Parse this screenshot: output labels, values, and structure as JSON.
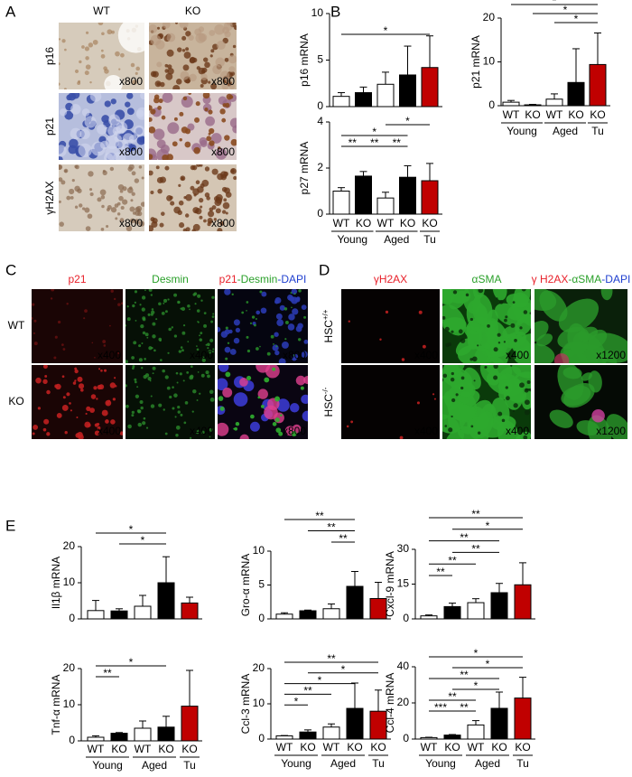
{
  "panel_letters": [
    "A",
    "B",
    "C",
    "D",
    "E"
  ],
  "panel_a": {
    "columns": [
      "WT",
      "KO"
    ],
    "rows": [
      "p16",
      "p21",
      "γH2AX"
    ],
    "magnifications": [
      [
        "x800",
        "x800"
      ],
      [
        "x800",
        "x800"
      ],
      [
        "x800",
        "x800"
      ]
    ]
  },
  "panel_c": {
    "columns": [
      [
        {
          "text": "p21",
          "color": "#e8202a"
        }
      ],
      [
        {
          "text": "Desmin",
          "color": "#2aa02a"
        }
      ],
      [
        {
          "text": "p21",
          "color": "#e8202a"
        },
        {
          "text": "-Desmin",
          "color": "#2aa02a"
        },
        {
          "text": "-DAPI",
          "color": "#2040d0"
        }
      ]
    ],
    "rows": [
      [
        {
          "text": "WT"
        }
      ],
      [
        {
          "text": "KO"
        }
      ]
    ],
    "magnifications": [
      [
        "x400",
        "x400",
        "x800"
      ],
      [
        "x400",
        "x400",
        "x800"
      ]
    ]
  },
  "panel_d": {
    "columns": [
      [
        {
          "text": "γH2AX",
          "color": "#e8202a"
        }
      ],
      [
        {
          "text": "αSMA",
          "color": "#2aa02a"
        }
      ],
      [
        {
          "text": "γ H2AX",
          "color": "#e8202a"
        },
        {
          "text": "-αSMA",
          "color": "#2aa02a"
        },
        {
          "text": "-DAPI",
          "color": "#2040d0"
        }
      ]
    ],
    "rows": [
      [
        {
          "text": "HSC"
        },
        {
          "text": "+/+",
          "superscript": true
        }
      ],
      [
        {
          "text": "HSC"
        },
        {
          "text": "-/-",
          "superscript": true
        }
      ]
    ],
    "magnifications": [
      [
        "x400",
        "x400",
        "x1200"
      ],
      [
        "x400",
        "x400",
        "x1200"
      ]
    ]
  },
  "chart_data": [
    {
      "type": "bar",
      "ylabel": "p16 mRNA",
      "values": [
        1.1,
        1.5,
        2.4,
        3.4,
        4.2
      ],
      "errors": [
        0.4,
        0.6,
        1.3,
        3.1,
        3.4
      ],
      "colors": [
        "#ffffff",
        "#000000",
        "#ffffff",
        "#000000",
        "#c00000"
      ],
      "ylim": [
        0,
        10
      ],
      "yticks": [
        0,
        5,
        10
      ],
      "significance": [
        {
          "from": 0,
          "to": 4,
          "label": "*"
        }
      ]
    },
    {
      "type": "bar",
      "ylabel": "p21 mRNA",
      "values": [
        0.8,
        0.2,
        1.5,
        5.3,
        9.4
      ],
      "errors": [
        0.4,
        0.1,
        1.2,
        7.7,
        7.2
      ],
      "colors": [
        "#ffffff",
        "#000000",
        "#ffffff",
        "#000000",
        "#c00000"
      ],
      "ylim": [
        0,
        20
      ],
      "yticks": [
        0,
        10,
        20
      ],
      "categories": [
        "WT",
        "KO",
        "WT",
        "KO",
        "KO"
      ],
      "groups": [
        {
          "name": "Young",
          "categories": [
            0,
            1
          ]
        },
        {
          "name": "Aged",
          "categories": [
            2,
            3
          ]
        },
        {
          "name": "Tu",
          "categories": [
            4
          ]
        }
      ],
      "significance": [
        {
          "from": 0,
          "to": 4,
          "label": "*"
        },
        {
          "from": 1,
          "to": 4,
          "label": "*"
        },
        {
          "from": 2,
          "to": 4,
          "label": "*"
        }
      ]
    },
    {
      "type": "bar",
      "ylabel": "p27 mRNA",
      "values": [
        1.0,
        1.65,
        0.7,
        1.6,
        1.45
      ],
      "errors": [
        0.15,
        0.2,
        0.25,
        0.5,
        0.75
      ],
      "colors": [
        "#ffffff",
        "#000000",
        "#ffffff",
        "#000000",
        "#c00000"
      ],
      "ylim": [
        0,
        4
      ],
      "yticks": [
        0,
        2,
        4
      ],
      "categories": [
        "WT",
        "KO",
        "WT",
        "KO",
        "KO"
      ],
      "groups": [
        {
          "name": "Young",
          "categories": [
            0,
            1
          ]
        },
        {
          "name": "Aged",
          "categories": [
            2,
            3
          ]
        },
        {
          "name": "Tu",
          "categories": [
            4
          ]
        }
      ],
      "significance": [
        {
          "from": 2,
          "to": 4,
          "label": "*"
        },
        {
          "from": 0,
          "to": 3,
          "label": "*"
        },
        {
          "from": 2,
          "to": 3,
          "label": "**"
        },
        {
          "from": 0,
          "to": 1,
          "label": "**"
        },
        {
          "from": 1,
          "to": 2,
          "label": "**"
        }
      ]
    },
    {
      "type": "bar",
      "ylabel": "Il1β mRNA",
      "values": [
        2.3,
        2.2,
        3.5,
        10.0,
        4.4
      ],
      "errors": [
        2.8,
        0.6,
        3.0,
        7.2,
        1.6
      ],
      "colors": [
        "#ffffff",
        "#000000",
        "#ffffff",
        "#000000",
        "#c00000"
      ],
      "ylim": [
        0,
        20
      ],
      "yticks": [
        0,
        10,
        20
      ],
      "significance": [
        {
          "from": 0,
          "to": 3,
          "label": "*"
        },
        {
          "from": 1,
          "to": 3,
          "label": "*"
        }
      ]
    },
    {
      "type": "bar",
      "ylabel": "Gro-α mRNA",
      "values": [
        0.7,
        1.2,
        1.5,
        4.8,
        3.0
      ],
      "errors": [
        0.2,
        0.1,
        0.7,
        2.2,
        2.4
      ],
      "colors": [
        "#ffffff",
        "#000000",
        "#ffffff",
        "#000000",
        "#c00000"
      ],
      "ylim": [
        0,
        10
      ],
      "yticks": [
        0,
        5,
        10
      ],
      "significance": [
        {
          "from": 0,
          "to": 3,
          "label": "**"
        },
        {
          "from": 1,
          "to": 3,
          "label": "**"
        },
        {
          "from": 2,
          "to": 3,
          "label": "**"
        }
      ]
    },
    {
      "type": "bar",
      "ylabel": "Cxcl-9 mRNA",
      "values": [
        1.3,
        5.3,
        7.0,
        11.3,
        14.7
      ],
      "errors": [
        0.4,
        1.5,
        1.7,
        4.0,
        9.5
      ],
      "colors": [
        "#ffffff",
        "#000000",
        "#ffffff",
        "#000000",
        "#c00000"
      ],
      "ylim": [
        0,
        30
      ],
      "yticks": [
        0,
        15,
        30
      ],
      "significance": [
        {
          "from": 0,
          "to": 4,
          "label": "**"
        },
        {
          "from": 1,
          "to": 4,
          "label": "*"
        },
        {
          "from": 0,
          "to": 3,
          "label": "**"
        },
        {
          "from": 1,
          "to": 3,
          "label": "**"
        },
        {
          "from": 0,
          "to": 2,
          "label": "**"
        },
        {
          "from": 0,
          "to": 1,
          "label": "**"
        }
      ]
    },
    {
      "type": "bar",
      "ylabel": "Tnf-α mRNA",
      "values": [
        1.0,
        2.1,
        3.5,
        3.8,
        9.6
      ],
      "errors": [
        0.4,
        0.2,
        2.0,
        3.0,
        9.9
      ],
      "colors": [
        "#ffffff",
        "#000000",
        "#ffffff",
        "#000000",
        "#c00000"
      ],
      "ylim": [
        0,
        20
      ],
      "yticks": [
        0,
        10,
        20
      ],
      "categories": [
        "WT",
        "KO",
        "WT",
        "KO",
        "KO"
      ],
      "groups": [
        {
          "name": "Young",
          "categories": [
            0,
            1
          ]
        },
        {
          "name": "Aged",
          "categories": [
            2,
            3
          ]
        },
        {
          "name": "Tu",
          "categories": [
            4
          ]
        }
      ],
      "significance": [
        {
          "from": 0,
          "to": 3,
          "label": "*"
        },
        {
          "from": 0,
          "to": 1,
          "label": "**"
        }
      ]
    },
    {
      "type": "bar",
      "ylabel": "Ccl-3 mRNA",
      "values": [
        0.9,
        2.0,
        3.4,
        8.7,
        7.9
      ],
      "errors": [
        0.1,
        0.6,
        0.9,
        7.2,
        6.0
      ],
      "colors": [
        "#ffffff",
        "#000000",
        "#ffffff",
        "#000000",
        "#c00000"
      ],
      "ylim": [
        0,
        20
      ],
      "yticks": [
        0,
        10,
        20
      ],
      "categories": [
        "WT",
        "KO",
        "WT",
        "KO",
        "KO"
      ],
      "groups": [
        {
          "name": "Young",
          "categories": [
            0,
            1
          ]
        },
        {
          "name": "Aged",
          "categories": [
            2,
            3
          ]
        },
        {
          "name": "Tu",
          "categories": [
            4
          ]
        }
      ],
      "significance": [
        {
          "from": 0,
          "to": 4,
          "label": "**"
        },
        {
          "from": 1,
          "to": 4,
          "label": "*"
        },
        {
          "from": 0,
          "to": 3,
          "label": "*"
        },
        {
          "from": 0,
          "to": 2,
          "label": "**"
        },
        {
          "from": 0,
          "to": 1,
          "label": "*"
        }
      ]
    },
    {
      "type": "bar",
      "ylabel": "Ccl-4 mRNA",
      "values": [
        0.8,
        2.2,
        7.8,
        17.0,
        22.7
      ],
      "errors": [
        0.2,
        0.3,
        2.4,
        9.0,
        11.5
      ],
      "colors": [
        "#ffffff",
        "#000000",
        "#ffffff",
        "#000000",
        "#c00000"
      ],
      "ylim": [
        0,
        40
      ],
      "yticks": [
        0,
        20,
        40
      ],
      "categories": [
        "WT",
        "KO",
        "WT",
        "KO",
        "KO"
      ],
      "groups": [
        {
          "name": "Young",
          "categories": [
            0,
            1
          ]
        },
        {
          "name": "Aged",
          "categories": [
            2,
            3
          ]
        },
        {
          "name": "Tu",
          "categories": [
            4
          ]
        }
      ],
      "significance": [
        {
          "from": 0,
          "to": 4,
          "label": "*"
        },
        {
          "from": 1,
          "to": 4,
          "label": "*"
        },
        {
          "from": 0,
          "to": 3,
          "label": "**"
        },
        {
          "from": 1,
          "to": 3,
          "label": "*"
        },
        {
          "from": 0,
          "to": 2,
          "label": "**"
        },
        {
          "from": 1,
          "to": 2,
          "label": "**"
        },
        {
          "from": 0,
          "to": 1,
          "label": "***"
        }
      ]
    }
  ]
}
